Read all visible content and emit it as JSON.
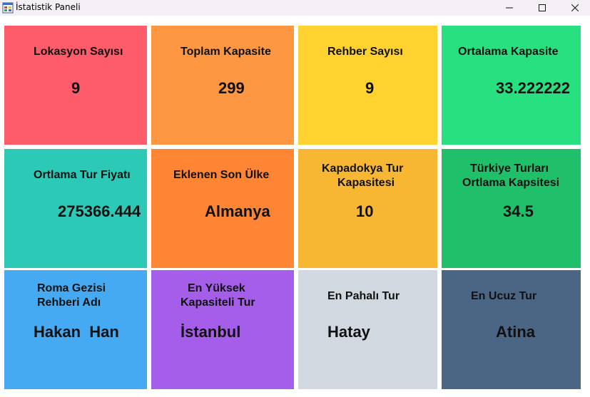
{
  "window": {
    "title": "İstatistik Paneli",
    "icons": {
      "app": "app-icon",
      "minimize": "minimize-icon",
      "maximize": "maximize-icon",
      "close": "close-icon"
    }
  },
  "tiles": [
    {
      "label": "Lokasyon Sayısı",
      "value": "9",
      "color": "#fe5b6b"
    },
    {
      "label": "Toplam Kapasite",
      "value": "299",
      "color": "#fe9742"
    },
    {
      "label": "Rehber Sayısı",
      "value": "9",
      "color": "#ffd22f"
    },
    {
      "label": "Ortalama Kapasite",
      "value": "33.222222",
      "color": "#28e080"
    },
    {
      "label": "Ortlama Tur Fiyatı",
      "value": "275366.444",
      "color": "#2ccab6"
    },
    {
      "label": "Eklenen Son Ülke",
      "value": "Almanya",
      "color": "#fd8533"
    },
    {
      "label_line1": "Kapadokya Tur",
      "label_line2": "Kapasitesi",
      "value": "10",
      "color": "#f7b733"
    },
    {
      "label_line1": "Türkiye Turları",
      "label_line2": "Ortlama Kapsitesi",
      "value": "34.5",
      "color": "#20bf69"
    },
    {
      "label_line1": "Roma Gezisi",
      "label_line2": "Rehberi Adı",
      "value": "Hakan  Han",
      "color": "#46aaf2"
    },
    {
      "label_line1": "En Yüksek",
      "label_line2": "Kapasiteli Tur",
      "value": "İstanbul",
      "color": "#a55eea"
    },
    {
      "label": "En Pahalı Tur",
      "value": "Hatay",
      "color": "#d1d8e0"
    },
    {
      "label": "En Ucuz Tur",
      "value": "Atina",
      "color": "#4b6584"
    }
  ]
}
